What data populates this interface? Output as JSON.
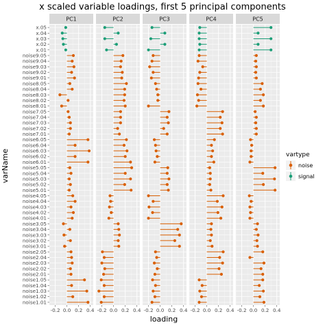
{
  "chart_data": {
    "type": "lollipop",
    "title": "x scaled variable loadings, first 5 principal components",
    "xlabel": "loading",
    "ylabel": "varName",
    "xlim": [
      -0.3,
      0.45
    ],
    "x_ticks": [
      -0.2,
      0.0,
      0.2,
      0.4
    ],
    "x_tick_labels": [
      "-0.2",
      "0.0",
      "0.2",
      "0.4"
    ],
    "grid": true,
    "panels": [
      "PC1",
      "PC2",
      "PC3",
      "PC4",
      "PC5"
    ],
    "legend": {
      "title": "vartype",
      "placement": "right",
      "entries": [
        {
          "label": "noise",
          "color": "#d95f02"
        },
        {
          "label": "signal",
          "color": "#1b9e77"
        }
      ]
    },
    "variables": [
      {
        "name": "x.05",
        "vartype": "signal",
        "loadings": [
          -0.02,
          -0.15,
          -0.14,
          -0.12,
          0.3
        ]
      },
      {
        "name": "x.04",
        "vartype": "signal",
        "loadings": [
          -0.08,
          0.08,
          0.08,
          -0.13,
          0.08
        ]
      },
      {
        "name": "x.03",
        "vartype": "signal",
        "loadings": [
          -0.07,
          -0.15,
          -0.16,
          -0.13,
          0.3
        ]
      },
      {
        "name": "x.02",
        "vartype": "signal",
        "loadings": [
          -0.06,
          0.05,
          0.08,
          -0.12,
          0.08
        ]
      },
      {
        "name": "x.01",
        "vartype": "signal",
        "loadings": [
          -0.02,
          -0.12,
          -0.2,
          -0.13,
          0.3
        ]
      },
      {
        "name": "noise9.05",
        "vartype": "noise",
        "loadings": [
          0.11,
          0.16,
          -0.12,
          -0.13,
          0.05
        ]
      },
      {
        "name": "noise9.04",
        "vartype": "noise",
        "loadings": [
          0.09,
          0.13,
          -0.14,
          -0.15,
          0.04
        ]
      },
      {
        "name": "noise9.03",
        "vartype": "noise",
        "loadings": [
          0.12,
          0.12,
          -0.18,
          -0.07,
          0.05
        ]
      },
      {
        "name": "noise9.02",
        "vartype": "noise",
        "loadings": [
          0.08,
          0.15,
          -0.12,
          -0.12,
          0.04
        ]
      },
      {
        "name": "noise9.01",
        "vartype": "noise",
        "loadings": [
          0.13,
          0.14,
          -0.15,
          -0.14,
          0.05
        ]
      },
      {
        "name": "noise8.05",
        "vartype": "noise",
        "loadings": [
          0.05,
          0.22,
          -0.08,
          -0.15,
          0.15
        ]
      },
      {
        "name": "noise8.04",
        "vartype": "noise",
        "loadings": [
          0.09,
          0.19,
          -0.06,
          -0.1,
          0.12
        ]
      },
      {
        "name": "noise8.03",
        "vartype": "noise",
        "loadings": [
          -0.12,
          0.19,
          -0.04,
          -0.16,
          0.17
        ]
      },
      {
        "name": "noise8.02",
        "vartype": "noise",
        "loadings": [
          0.02,
          0.18,
          -0.04,
          -0.14,
          0.12
        ]
      },
      {
        "name": "noise8.01",
        "vartype": "noise",
        "loadings": [
          -0.09,
          0.2,
          -0.2,
          -0.17,
          0.17
        ]
      },
      {
        "name": "noise7.05",
        "vartype": "noise",
        "loadings": [
          0.02,
          0.12,
          0.15,
          0.27,
          0.03
        ]
      },
      {
        "name": "noise7.04",
        "vartype": "noise",
        "loadings": [
          0.04,
          0.12,
          0.12,
          0.23,
          0.05
        ]
      },
      {
        "name": "noise7.03",
        "vartype": "noise",
        "loadings": [
          0.06,
          0.12,
          0.14,
          0.26,
          0.04
        ]
      },
      {
        "name": "noise7.02",
        "vartype": "noise",
        "loadings": [
          0.06,
          0.07,
          0.06,
          0.23,
          0.05
        ]
      },
      {
        "name": "noise7.01",
        "vartype": "noise",
        "loadings": [
          0.04,
          0.1,
          0.12,
          0.27,
          0.05
        ]
      },
      {
        "name": "noise6.05",
        "vartype": "noise",
        "loadings": [
          0.36,
          0.22,
          -0.1,
          0.13,
          -0.05
        ]
      },
      {
        "name": "noise6.04",
        "vartype": "noise",
        "loadings": [
          0.14,
          0.18,
          -0.08,
          0.08,
          -0.03
        ]
      },
      {
        "name": "noise6.03",
        "vartype": "noise",
        "loadings": [
          0.38,
          0.23,
          -0.07,
          0.1,
          -0.04
        ]
      },
      {
        "name": "noise6.02",
        "vartype": "noise",
        "loadings": [
          0.14,
          0.2,
          -0.05,
          0.08,
          -0.04
        ]
      },
      {
        "name": "noise6.01",
        "vartype": "noise",
        "loadings": [
          0.36,
          0.29,
          -0.09,
          0.12,
          -0.06
        ]
      },
      {
        "name": "noise5.05",
        "vartype": "noise",
        "loadings": [
          0.05,
          0.31,
          0.13,
          0.05,
          0.37
        ]
      },
      {
        "name": "noise5.04",
        "vartype": "noise",
        "loadings": [
          0.07,
          0.2,
          0.12,
          0.06,
          0.16
        ]
      },
      {
        "name": "noise5.03",
        "vartype": "noise",
        "loadings": [
          0.04,
          0.29,
          0.15,
          0.06,
          0.36
        ]
      },
      {
        "name": "noise5.02",
        "vartype": "noise",
        "loadings": [
          0.06,
          0.19,
          0.12,
          0.05,
          0.17
        ]
      },
      {
        "name": "noise5.01",
        "vartype": "noise",
        "loadings": [
          0.04,
          0.3,
          0.14,
          0.07,
          0.37
        ]
      },
      {
        "name": "noise4.05",
        "vartype": "noise",
        "loadings": [
          0.1,
          -0.06,
          -0.2,
          0.28,
          -0.07
        ]
      },
      {
        "name": "noise4.04",
        "vartype": "noise",
        "loadings": [
          0.14,
          -0.05,
          -0.12,
          0.18,
          -0.04
        ]
      },
      {
        "name": "noise4.03",
        "vartype": "noise",
        "loadings": [
          0.07,
          -0.07,
          -0.19,
          0.26,
          -0.06
        ]
      },
      {
        "name": "noise4.02",
        "vartype": "noise",
        "loadings": [
          0.11,
          -0.04,
          -0.13,
          0.19,
          -0.05
        ]
      },
      {
        "name": "noise4.01",
        "vartype": "noise",
        "loadings": [
          0.09,
          -0.08,
          -0.2,
          0.24,
          -0.06
        ]
      },
      {
        "name": "noise3.05",
        "vartype": "noise",
        "loadings": [
          -0.06,
          0.08,
          0.36,
          0.08,
          0.07
        ]
      },
      {
        "name": "noise3.04",
        "vartype": "noise",
        "loadings": [
          0.05,
          0.09,
          0.3,
          0.07,
          0.05
        ]
      },
      {
        "name": "noise3.03",
        "vartype": "noise",
        "loadings": [
          -0.05,
          0.1,
          0.33,
          0.08,
          0.08
        ]
      },
      {
        "name": "noise3.02",
        "vartype": "noise",
        "loadings": [
          0.06,
          0.08,
          0.25,
          0.06,
          0.06
        ]
      },
      {
        "name": "noise3.01",
        "vartype": "noise",
        "loadings": [
          -0.04,
          0.09,
          0.33,
          0.09,
          0.07
        ]
      },
      {
        "name": "noise2.05",
        "vartype": "noise",
        "loadings": [
          0.07,
          -0.19,
          -0.08,
          0.28,
          0.16
        ]
      },
      {
        "name": "noise2.04",
        "vartype": "noise",
        "loadings": [
          0.08,
          -0.16,
          -0.06,
          0.22,
          -0.06
        ]
      },
      {
        "name": "noise2.03",
        "vartype": "noise",
        "loadings": [
          0.09,
          -0.2,
          -0.1,
          0.27,
          0.18
        ]
      },
      {
        "name": "noise2.02",
        "vartype": "noise",
        "loadings": [
          0.06,
          -0.15,
          -0.05,
          0.21,
          0.13
        ]
      },
      {
        "name": "noise2.01",
        "vartype": "noise",
        "loadings": [
          0.07,
          -0.17,
          -0.09,
          0.25,
          0.16
        ]
      },
      {
        "name": "noise1.05",
        "vartype": "noise",
        "loadings": [
          0.3,
          -0.21,
          -0.13,
          -0.13,
          0.16
        ]
      },
      {
        "name": "noise1.04",
        "vartype": "noise",
        "loadings": [
          0.08,
          -0.16,
          -0.08,
          -0.08,
          0.1
        ]
      },
      {
        "name": "noise1.03",
        "vartype": "noise",
        "loadings": [
          0.34,
          -0.25,
          -0.12,
          -0.12,
          0.17
        ]
      },
      {
        "name": "noise1.02",
        "vartype": "noise",
        "loadings": [
          0.1,
          -0.16,
          -0.09,
          -0.09,
          0.11
        ]
      },
      {
        "name": "noise1.01",
        "vartype": "noise",
        "loadings": [
          0.36,
          -0.21,
          -0.14,
          -0.13,
          0.18
        ]
      }
    ]
  }
}
